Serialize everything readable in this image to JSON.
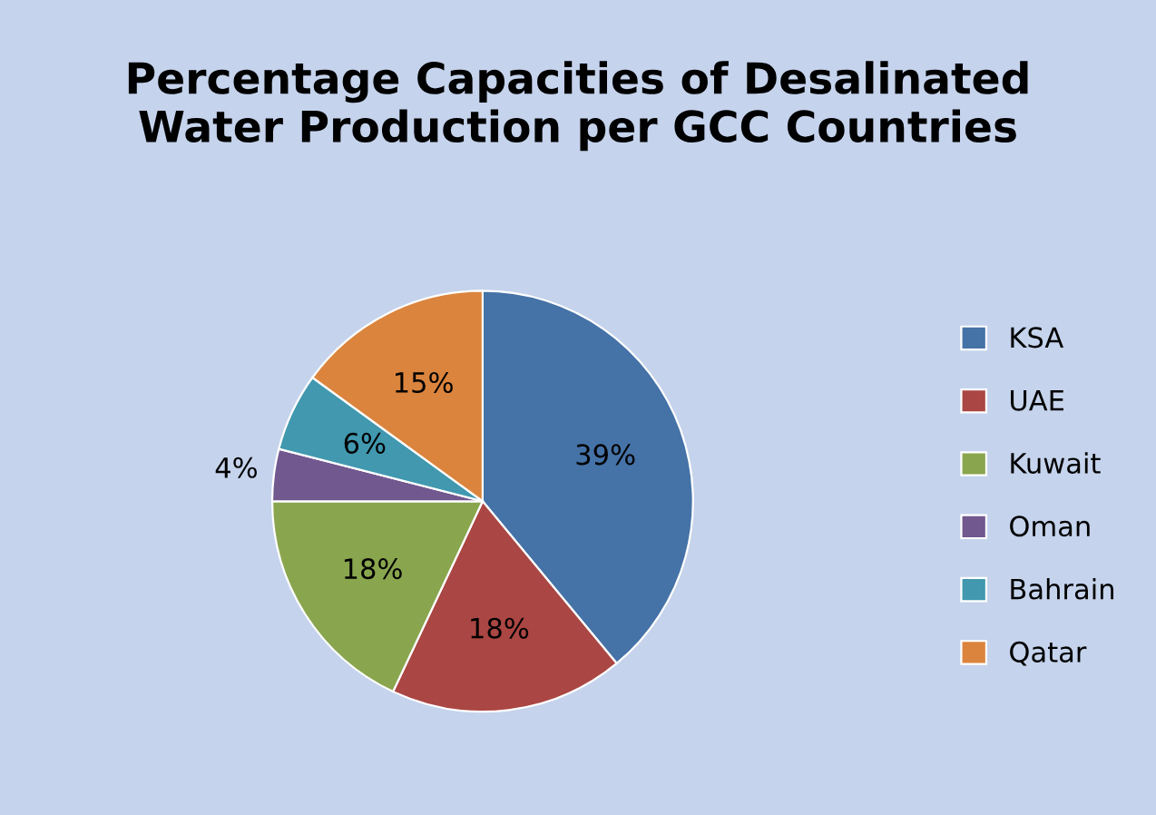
{
  "chart_data": {
    "type": "pie",
    "title": "Percentage Capacities of Desalinated\nWater Production per GCC Countries",
    "categories": [
      "KSA",
      "UAE",
      "Kuwait",
      "Oman",
      "Bahrain",
      "Qatar"
    ],
    "values": [
      39,
      18,
      18,
      4,
      6,
      15
    ],
    "colors": [
      "#4572a7",
      "#aa4643",
      "#89a54e",
      "#71588f",
      "#4198af",
      "#db843d"
    ],
    "value_labels": [
      "39%",
      "18%",
      "18%",
      "4%",
      "6%",
      "15%"
    ],
    "legend": "right"
  }
}
